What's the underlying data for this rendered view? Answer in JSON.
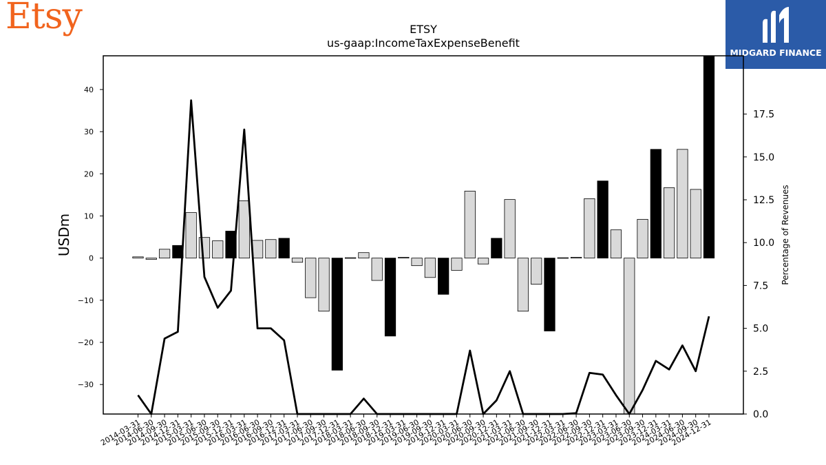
{
  "brand": {
    "name": "Etsy",
    "color": "#F1641E"
  },
  "logo": {
    "text": "MIDGARD FINANCE",
    "color": "#2B5BA8",
    "icon": "midgard-m-icon"
  },
  "chart_data": {
    "type": "bar",
    "title": "ETSY",
    "subtitle": "us-gaap:IncomeTaxExpenseBenefit",
    "ylabel": "USDm",
    "y2label": "Percentage of Revenues",
    "ylim": [
      -37,
      48
    ],
    "y2lim": [
      0,
      20.9
    ],
    "yticks": [
      -30,
      -20,
      -10,
      0,
      10,
      20,
      30,
      40
    ],
    "y2ticks": [
      0.0,
      2.5,
      5.0,
      7.5,
      10.0,
      12.5,
      15.0,
      17.5
    ],
    "categories": [
      "2014-03-31",
      "2014-06-30",
      "2014-09-30",
      "2014-12-31",
      "2015-03-31",
      "2015-06-30",
      "2015-09-30",
      "2015-12-31",
      "2016-03-31",
      "2016-06-30",
      "2016-09-30",
      "2016-12-31",
      "2017-03-31",
      "2017-06-30",
      "2017-09-30",
      "2017-12-31",
      "2018-03-31",
      "2018-06-30",
      "2018-09-30",
      "2018-12-31",
      "2019-03-31",
      "2019-06-30",
      "2019-09-30",
      "2019-12-31",
      "2020-03-31",
      "2020-06-30",
      "2020-09-30",
      "2020-12-31",
      "2021-03-31",
      "2021-06-30",
      "2021-09-30",
      "2021-12-31",
      "2022-03-31",
      "2022-06-30",
      "2022-09-30",
      "2022-12-31",
      "2023-03-31",
      "2023-06-30",
      "2023-09-30",
      "2023-12-31",
      "2024-03-31",
      "2024-06-30",
      "2024-09-30",
      "2024-12-31"
    ],
    "series": [
      {
        "type": "bar",
        "values": [
          0.3,
          -0.3,
          2.1,
          3.0,
          10.8,
          4.9,
          4.1,
          6.4,
          13.6,
          4.2,
          4.4,
          4.7,
          -1.0,
          -9.4,
          -12.6,
          -26.6,
          0.1,
          1.3,
          -5.3,
          -18.5,
          0.2,
          -1.8,
          -4.6,
          -8.6,
          -2.9,
          15.9,
          -1.4,
          4.7,
          13.9,
          -12.6,
          -6.2,
          -17.3,
          0.1,
          0.2,
          14.1,
          18.3,
          6.7,
          -37,
          9.2,
          25.8,
          16.7,
          25.8,
          16.3,
          48
        ],
        "highlight_every": 4,
        "colors": {
          "normal": "#d9d9d9",
          "highlight": "#000000",
          "edge": "#000000"
        }
      },
      {
        "type": "line",
        "axis": "right",
        "values": [
          1.1,
          -0.5,
          4.4,
          4.8,
          18.3,
          8.0,
          6.2,
          7.2,
          16.6,
          5.0,
          5.0,
          4.3,
          -0.5,
          -0.5,
          -0.5,
          -0.5,
          -0.5,
          0.9,
          -0.5,
          -0.5,
          -0.5,
          -0.5,
          -0.5,
          -0.5,
          -0.5,
          3.7,
          -0.5,
          0.8,
          2.5,
          -0.5,
          -0.5,
          -0.5,
          0.0,
          0.05,
          2.4,
          2.3,
          1.1,
          -0.5,
          1.4,
          3.1,
          2.6,
          4.0,
          2.5,
          5.7
        ],
        "color": "#000000"
      }
    ]
  }
}
